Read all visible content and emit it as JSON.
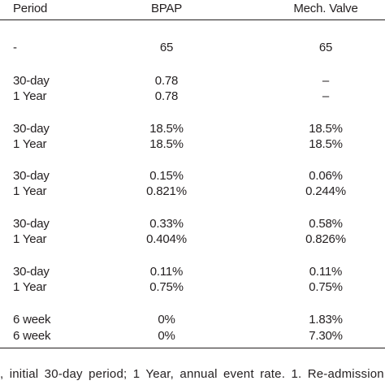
{
  "header": {
    "period": "Period",
    "bpap": "BPAP",
    "mech_valve": "Mech. Valve"
  },
  "rows": [
    {
      "period": "-",
      "bpap": "65",
      "mech": "65"
    },
    {
      "period": "30-day",
      "bpap": "0.78",
      "mech": "–"
    },
    {
      "period": "1 Year",
      "bpap": "0.78",
      "mech": "–"
    },
    {
      "period": "30-day",
      "bpap": "18.5%",
      "mech": "18.5%"
    },
    {
      "period": "1 Year",
      "bpap": "18.5%",
      "mech": "18.5%"
    },
    {
      "period": "30-day",
      "bpap": "0.15%",
      "mech": "0.06%"
    },
    {
      "period": "1 Year",
      "bpap": "0.821%",
      "mech": "0.244%"
    },
    {
      "period": "30-day",
      "bpap": "0.33%",
      "mech": "0.58%"
    },
    {
      "period": "1 Year",
      "bpap": "0.404%",
      "mech": "0.826%"
    },
    {
      "period": "30-day",
      "bpap": "0.11%",
      "mech": "0.11%"
    },
    {
      "period": "1 Year",
      "bpap": "0.75%",
      "mech": "0.75%"
    },
    {
      "period": "6 week",
      "bpap": "0%",
      "mech": "1.83%"
    },
    {
      "period": "6 week",
      "bpap": "0%",
      "mech": "7.30%"
    }
  ],
  "footnote": ", initial 30-day period; 1 Year, annual event rate. 1. Re-admission"
}
